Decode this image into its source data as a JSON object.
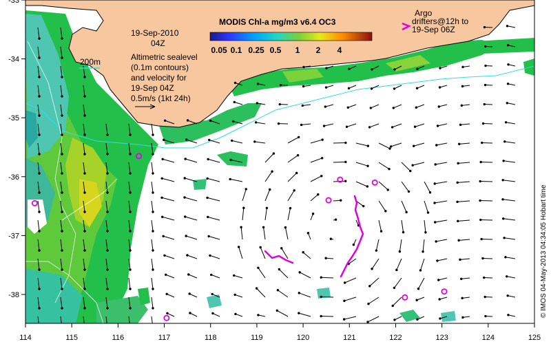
{
  "title": "MODIS Chl-a mg/m3 v6.4 OC3",
  "date": "19-Sep-2010",
  "hour": "04Z",
  "scale_bar_label": "200m",
  "legend_text": [
    "Altimetric sealevel",
    "(0.1m contours)",
    "and velocity for",
    "19-Sep 04Z",
    "0.5m/s (1kt 24h)"
  ],
  "argo_text": [
    "Argo",
    "drifters@12h to",
    "19-Sep 06Z"
  ],
  "colorbar_ticks": [
    "0.05",
    "0.1",
    "0.25",
    "0.5",
    "1",
    "2",
    "4"
  ],
  "side_text": "© IMOS 04-May-2013 04:34:05 Hobart time",
  "x_ticks": [
    "114",
    "115",
    "116",
    "117",
    "118",
    "119",
    "120",
    "121",
    "122",
    "123",
    "124",
    "125"
  ],
  "y_ticks": [
    "-33",
    "-34",
    "-35",
    "-36",
    "-37",
    "-38"
  ],
  "colors": {
    "land": "#f7c79f",
    "coast": "#000000",
    "isobath": "#33dddd",
    "argo": "#e000e0"
  },
  "argo_floats": [
    {
      "lon": 114.2,
      "lat": -36.45
    },
    {
      "lon": 116.45,
      "lat": -35.65
    },
    {
      "lon": 117.05,
      "lat": -38.4
    },
    {
      "lon": 120.55,
      "lat": -36.4
    },
    {
      "lon": 120.8,
      "lat": -36.05
    },
    {
      "lon": 121.55,
      "lat": -36.1
    },
    {
      "lon": 122.2,
      "lat": -38.05
    },
    {
      "lon": 123.05,
      "lat": -37.95
    }
  ],
  "argo_legend_marker": {
    "lon": 122.7,
    "lat": -32.9
  }
}
